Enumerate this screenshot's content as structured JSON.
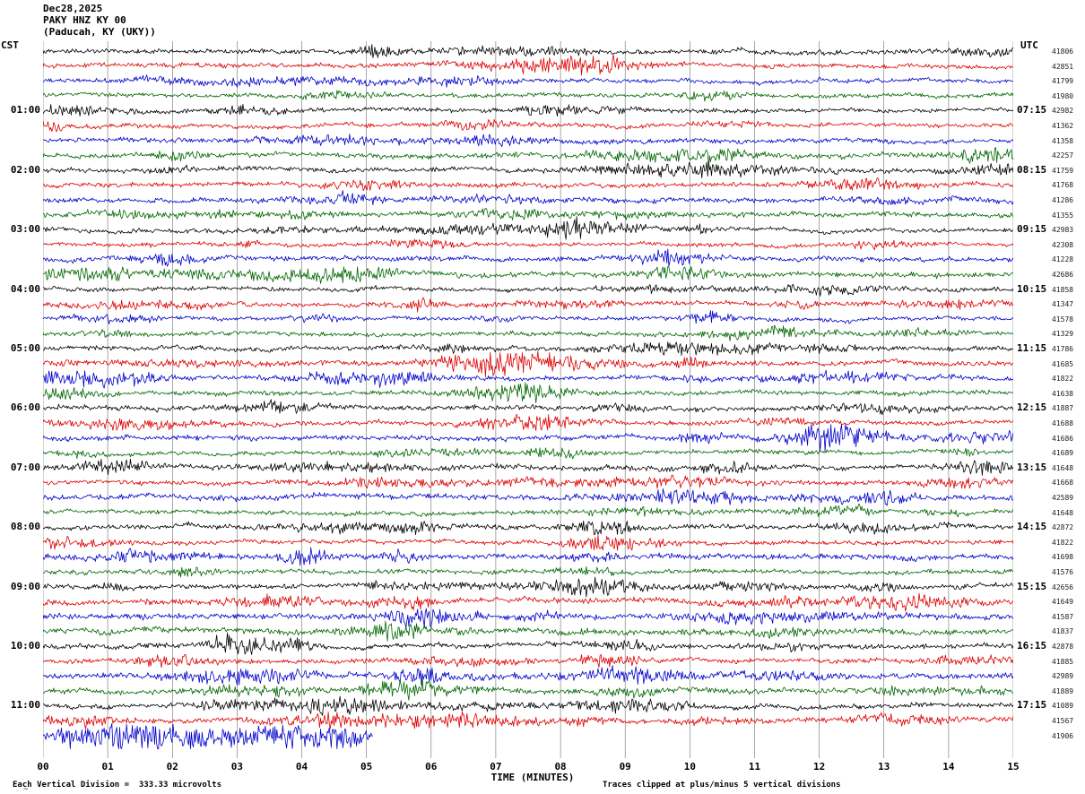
{
  "header": {
    "date": "Dec28,2025",
    "station": "PAKY HNZ KY 00",
    "location": "(Paducah, KY (UKY))"
  },
  "footer": {
    "scale_note": "Each Vertical Division =  333.33 microvolts",
    "clip_note": "Traces clipped at plus/minus 5 vertical divisions"
  },
  "chart_data": {
    "type": "line",
    "subtype": "seismogram-helicorder",
    "title": "PAKY HNZ KY 00 (Paducah, KY (UKY)) Dec28,2025",
    "x_title": "TIME (MINUTES)",
    "left_tz": "CST",
    "right_tz": "UTC",
    "x_range": [
      0,
      15
    ],
    "grid": true,
    "rows": 47,
    "rows_per_hour": 4,
    "minutes_per_row": 15,
    "clip_divisions": 5,
    "microvolts_per_division": 333.33,
    "trace_colors": [
      "#000000",
      "#dd0000",
      "#0000cc",
      "#006600"
    ],
    "left_labels": [
      "01:00",
      "02:00",
      "03:00",
      "04:00",
      "05:00",
      "06:00",
      "07:00",
      "08:00",
      "09:00",
      "10:00",
      "11:00"
    ],
    "right_labels": [
      "07:15",
      "08:15",
      "09:15",
      "10:15",
      "11:15",
      "12:15",
      "13:15",
      "14:15",
      "15:15",
      "16:15",
      "17:15"
    ],
    "label_row_start": 4,
    "label_row_step": 4,
    "minute_labels": [
      "00",
      "01",
      "02",
      "03",
      "04",
      "05",
      "06",
      "07",
      "08",
      "09",
      "10",
      "11",
      "12",
      "13",
      "14",
      "15"
    ],
    "right_values": [
      41806,
      42851,
      41799,
      41980,
      42982,
      41362,
      41358,
      42257,
      41759,
      41768,
      41286,
      41355,
      42983,
      42308,
      41228,
      42686,
      41858,
      41347,
      41578,
      41329,
      41786,
      41685,
      41822,
      41638,
      41887,
      41688,
      41686,
      41689,
      41648,
      41668,
      42589,
      41648,
      42872,
      41822,
      41698,
      41576,
      42656,
      41649,
      41587,
      41837,
      42878,
      41885,
      42989,
      41889,
      41089,
      41567,
      41906
    ],
    "last_row_end_minute": 5.1,
    "events": [
      {
        "row": 8,
        "start": 1.5,
        "end": 2.5,
        "gain": 0.8
      },
      {
        "row": 12,
        "start": 4.6,
        "end": 5.6,
        "gain": 1.0
      },
      {
        "row": 16,
        "start": 11.8,
        "end": 13.0,
        "gain": 0.9
      },
      {
        "row": 18,
        "start": 6.5,
        "end": 7.5,
        "gain": 0.8
      },
      {
        "row": 21,
        "start": 9.7,
        "end": 10.5,
        "gain": 1.8
      },
      {
        "row": 22,
        "start": 9.8,
        "end": 10.4,
        "gain": 1.3
      },
      {
        "row": 26,
        "start": 9.6,
        "end": 10.6,
        "gain": 1.5
      },
      {
        "row": 29,
        "start": 4.5,
        "end": 5.5,
        "gain": 1.0
      },
      {
        "row": 30,
        "start": 11.5,
        "end": 13.5,
        "gain": 0.9
      },
      {
        "row": 32,
        "start": 7.9,
        "end": 9.3,
        "gain": 1.4
      },
      {
        "row": 33,
        "start": 8.0,
        "end": 9.0,
        "gain": 1.5
      },
      {
        "row": 34,
        "start": 5.2,
        "end": 5.9,
        "gain": 2.0
      },
      {
        "row": 34,
        "start": 8.0,
        "end": 9.0,
        "gain": 1.2
      },
      {
        "row": 35,
        "start": 7.8,
        "end": 9.0,
        "gain": 1.0
      },
      {
        "row": 36,
        "start": 4.8,
        "end": 9.5,
        "gain": 1.0
      },
      {
        "row": 37,
        "start": 4.9,
        "end": 6.1,
        "gain": 1.5
      },
      {
        "row": 38,
        "start": 5.2,
        "end": 6.2,
        "gain": 1.8
      },
      {
        "row": 38,
        "start": 7.4,
        "end": 8.2,
        "gain": 1.2
      },
      {
        "row": 39,
        "start": 5.0,
        "end": 6.0,
        "gain": 1.2
      },
      {
        "row": 40,
        "start": 2.4,
        "end": 4.3,
        "gain": 2.0
      },
      {
        "row": 40,
        "start": 8.2,
        "end": 9.6,
        "gain": 1.4
      },
      {
        "row": 41,
        "start": 8.3,
        "end": 9.4,
        "gain": 1.6
      },
      {
        "row": 42,
        "start": 5.3,
        "end": 6.3,
        "gain": 2.2
      },
      {
        "row": 42,
        "start": 8.6,
        "end": 9.6,
        "gain": 1.5
      },
      {
        "row": 43,
        "start": 2.3,
        "end": 4.2,
        "gain": 1.3
      },
      {
        "row": 44,
        "start": 2.2,
        "end": 4.8,
        "gain": 1.5
      },
      {
        "row": 44,
        "start": 8.0,
        "end": 10.2,
        "gain": 1.2
      },
      {
        "row": 45,
        "start": 3.0,
        "end": 9.0,
        "gain": 1.1
      },
      {
        "row": 46,
        "start": 0.0,
        "end": 5.1,
        "gain": 3.8
      }
    ]
  }
}
